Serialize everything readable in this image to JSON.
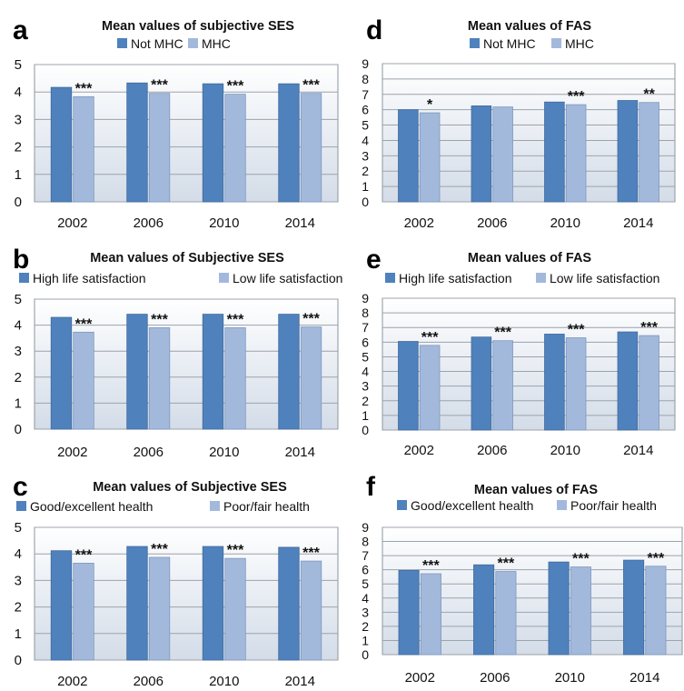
{
  "colors": {
    "series_dark": "#4F81BD",
    "series_light": "#A3B9DC",
    "plot_bg_top": "#FFFFFF",
    "plot_bg_bottom": "#D3DCE8",
    "grid": "#9CA3AC"
  },
  "chart_data": [
    {
      "panel": "a",
      "type": "bar",
      "title": "Mean values of subjective SES",
      "categories": [
        "2002",
        "2006",
        "2010",
        "2014"
      ],
      "series": [
        {
          "name": "Not MHC",
          "values": [
            4.17,
            4.33,
            4.3,
            4.3
          ]
        },
        {
          "name": "MHC",
          "values": [
            3.83,
            3.95,
            3.92,
            3.95
          ]
        }
      ],
      "annotations": [
        "***",
        "***",
        "***",
        "***"
      ],
      "yticks": [
        "0",
        "1",
        "2",
        "3",
        "4",
        "5"
      ],
      "ylim": [
        0,
        5
      ],
      "grid": true,
      "legend": "top"
    },
    {
      "panel": "d",
      "type": "bar",
      "title": "Mean values of FAS",
      "categories": [
        "2002",
        "2006",
        "2010",
        "2014"
      ],
      "series": [
        {
          "name": "Not MHC",
          "values": [
            6.0,
            6.25,
            6.5,
            6.6
          ]
        },
        {
          "name": "MHC",
          "values": [
            5.8,
            6.18,
            6.33,
            6.47
          ]
        }
      ],
      "annotations": [
        "*",
        "",
        "***",
        "**"
      ],
      "yticks": [
        "0",
        "1",
        "2",
        "3",
        "4",
        "5",
        "6",
        "7",
        "8",
        "9"
      ],
      "ylim": [
        0,
        9
      ],
      "grid": true,
      "legend": "top"
    },
    {
      "panel": "b",
      "type": "bar",
      "title": "Mean values of Subjective SES",
      "categories": [
        "2002",
        "2006",
        "2010",
        "2014"
      ],
      "series": [
        {
          "name": "High life satisfaction",
          "values": [
            4.3,
            4.42,
            4.42,
            4.42
          ]
        },
        {
          "name": "Low life satisfaction",
          "values": [
            3.73,
            3.9,
            3.9,
            3.93
          ]
        }
      ],
      "annotations": [
        "***",
        "***",
        "***",
        "***"
      ],
      "yticks": [
        "0",
        "1",
        "2",
        "3",
        "4",
        "5"
      ],
      "ylim": [
        0,
        5
      ],
      "grid": true,
      "legend": "top"
    },
    {
      "panel": "e",
      "type": "bar",
      "title": "Mean values of FAS",
      "categories": [
        "2002",
        "2006",
        "2010",
        "2014"
      ],
      "series": [
        {
          "name": "High life satisfaction",
          "values": [
            6.05,
            6.35,
            6.55,
            6.7
          ]
        },
        {
          "name": "Low life satisfaction",
          "values": [
            5.78,
            6.1,
            6.3,
            6.45
          ]
        }
      ],
      "annotations": [
        "***",
        "***",
        "***",
        "***"
      ],
      "yticks": [
        "0",
        "1",
        "2",
        "3",
        "4",
        "5",
        "6",
        "7",
        "8",
        "9"
      ],
      "ylim": [
        0,
        9
      ],
      "grid": true,
      "legend": "top"
    },
    {
      "panel": "c",
      "type": "bar",
      "title": "Mean values of Subjective SES",
      "categories": [
        "2002",
        "2006",
        "2010",
        "2014"
      ],
      "series": [
        {
          "name": "Good/excellent health",
          "values": [
            4.12,
            4.28,
            4.28,
            4.25
          ]
        },
        {
          "name": "Poor/fair health",
          "values": [
            3.65,
            3.87,
            3.83,
            3.73
          ]
        }
      ],
      "annotations": [
        "***",
        "***",
        "***",
        "***"
      ],
      "yticks": [
        "0",
        "1",
        "2",
        "3",
        "4",
        "5"
      ],
      "ylim": [
        0,
        5
      ],
      "grid": true,
      "legend": "top"
    },
    {
      "panel": "f",
      "type": "bar",
      "title": "Mean values of FAS",
      "categories": [
        "2002",
        "2006",
        "2010",
        "2014"
      ],
      "series": [
        {
          "name": "Good/excellent health",
          "values": [
            5.95,
            6.35,
            6.55,
            6.68
          ]
        },
        {
          "name": "Poor/fair health",
          "values": [
            5.72,
            5.88,
            6.2,
            6.25
          ]
        }
      ],
      "annotations": [
        "***",
        "***",
        "***",
        "***"
      ],
      "yticks": [
        "0",
        "1",
        "2",
        "3",
        "4",
        "5",
        "6",
        "7",
        "8",
        "9"
      ],
      "ylim": [
        0,
        9
      ],
      "grid": true,
      "legend": "top"
    }
  ]
}
